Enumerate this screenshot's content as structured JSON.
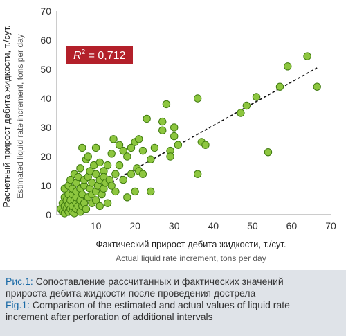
{
  "chart_data": {
    "type": "scatter",
    "xlabel_ru": "Фактический прирост дебита жидкости, т./сут.",
    "xlabel_en": "Actual liquid rate increment, tons per day",
    "ylabel_ru": "Расчетный прирост дебита жидкости, т./сут.",
    "ylabel_en": "Estimated liquid rate increment, tons per day",
    "xlim": [
      0,
      70
    ],
    "ylim": [
      0,
      70
    ],
    "xticks": [
      "10",
      "20",
      "30",
      "40",
      "50",
      "60",
      "70"
    ],
    "yticks": [
      "0",
      "10",
      "20",
      "30",
      "40",
      "50",
      "60",
      "70"
    ],
    "grid": false,
    "r2_label_prefix": "R",
    "r2_label_sup": "2",
    "r2_label_value": " = 0,712",
    "colors": {
      "point_fill": "#8dc63f",
      "point_stroke": "#3f7a0f",
      "trend": "#111111",
      "r2_box": "#b3202a"
    },
    "trendline": {
      "x": [
        1,
        66.5
      ],
      "y": [
        1.5,
        50.5
      ]
    },
    "points": [
      {
        "x": 1,
        "y": 2
      },
      {
        "x": 1.5,
        "y": 1
      },
      {
        "x": 1.5,
        "y": 4
      },
      {
        "x": 2,
        "y": 0.5
      },
      {
        "x": 2,
        "y": 3
      },
      {
        "x": 2,
        "y": 6
      },
      {
        "x": 2,
        "y": 9
      },
      {
        "x": 2.5,
        "y": 2
      },
      {
        "x": 2.5,
        "y": 5
      },
      {
        "x": 3,
        "y": 1
      },
      {
        "x": 3,
        "y": 3.5
      },
      {
        "x": 3,
        "y": 7
      },
      {
        "x": 3,
        "y": 10
      },
      {
        "x": 3.5,
        "y": 2
      },
      {
        "x": 3.5,
        "y": 5
      },
      {
        "x": 3.5,
        "y": 12
      },
      {
        "x": 4,
        "y": 1
      },
      {
        "x": 4,
        "y": 3
      },
      {
        "x": 4,
        "y": 7
      },
      {
        "x": 4,
        "y": 9
      },
      {
        "x": 4.5,
        "y": 0.5
      },
      {
        "x": 4.5,
        "y": 5
      },
      {
        "x": 4.5,
        "y": 14
      },
      {
        "x": 5,
        "y": 2
      },
      {
        "x": 5,
        "y": 4
      },
      {
        "x": 5,
        "y": 6
      },
      {
        "x": 5,
        "y": 8
      },
      {
        "x": 5,
        "y": 11
      },
      {
        "x": 5.5,
        "y": 3
      },
      {
        "x": 5.5,
        "y": 13
      },
      {
        "x": 6,
        "y": 1
      },
      {
        "x": 6,
        "y": 5
      },
      {
        "x": 6,
        "y": 9
      },
      {
        "x": 6,
        "y": 16
      },
      {
        "x": 6.5,
        "y": 3
      },
      {
        "x": 6.5,
        "y": 7
      },
      {
        "x": 6.5,
        "y": 23
      },
      {
        "x": 7,
        "y": 4
      },
      {
        "x": 7,
        "y": 10
      },
      {
        "x": 7,
        "y": 12
      },
      {
        "x": 7.5,
        "y": 19
      },
      {
        "x": 7.5,
        "y": 2
      },
      {
        "x": 8,
        "y": 6
      },
      {
        "x": 8,
        "y": 13
      },
      {
        "x": 8,
        "y": 20
      },
      {
        "x": 8.5,
        "y": 9
      },
      {
        "x": 8.5,
        "y": 15
      },
      {
        "x": 9,
        "y": 4
      },
      {
        "x": 9,
        "y": 7
      },
      {
        "x": 9,
        "y": 11
      },
      {
        "x": 9.5,
        "y": 17
      },
      {
        "x": 10,
        "y": 5
      },
      {
        "x": 10,
        "y": 8
      },
      {
        "x": 10,
        "y": 14
      },
      {
        "x": 10,
        "y": 23
      },
      {
        "x": 10.5,
        "y": 10
      },
      {
        "x": 11,
        "y": 3
      },
      {
        "x": 11,
        "y": 12
      },
      {
        "x": 11,
        "y": 18
      },
      {
        "x": 11.5,
        "y": 7
      },
      {
        "x": 12,
        "y": 9
      },
      {
        "x": 12,
        "y": 15
      },
      {
        "x": 12,
        "y": 13
      },
      {
        "x": 12.5,
        "y": 11
      },
      {
        "x": 13,
        "y": 17
      },
      {
        "x": 13,
        "y": 4
      },
      {
        "x": 13.5,
        "y": 12
      },
      {
        "x": 14,
        "y": 10
      },
      {
        "x": 14,
        "y": 21
      },
      {
        "x": 14.5,
        "y": 26
      },
      {
        "x": 15,
        "y": 14
      },
      {
        "x": 15,
        "y": 8
      },
      {
        "x": 16,
        "y": 17
      },
      {
        "x": 16,
        "y": 24
      },
      {
        "x": 17,
        "y": 12
      },
      {
        "x": 17,
        "y": 22
      },
      {
        "x": 18,
        "y": 20
      },
      {
        "x": 18,
        "y": 6
      },
      {
        "x": 19,
        "y": 14
      },
      {
        "x": 19,
        "y": 23
      },
      {
        "x": 20,
        "y": 8
      },
      {
        "x": 20,
        "y": 25
      },
      {
        "x": 20.5,
        "y": 16
      },
      {
        "x": 21,
        "y": 15
      },
      {
        "x": 21,
        "y": 26
      },
      {
        "x": 22,
        "y": 22
      },
      {
        "x": 22,
        "y": 14
      },
      {
        "x": 23,
        "y": 33
      },
      {
        "x": 24,
        "y": 19
      },
      {
        "x": 24,
        "y": 8
      },
      {
        "x": 25,
        "y": 23
      },
      {
        "x": 27,
        "y": 29
      },
      {
        "x": 27,
        "y": 32
      },
      {
        "x": 28,
        "y": 38
      },
      {
        "x": 29,
        "y": 22
      },
      {
        "x": 29,
        "y": 20
      },
      {
        "x": 30,
        "y": 30
      },
      {
        "x": 30,
        "y": 27
      },
      {
        "x": 31,
        "y": 24
      },
      {
        "x": 36,
        "y": 40
      },
      {
        "x": 36,
        "y": 14
      },
      {
        "x": 37,
        "y": 25
      },
      {
        "x": 38,
        "y": 24
      },
      {
        "x": 47,
        "y": 35
      },
      {
        "x": 48.5,
        "y": 37.5
      },
      {
        "x": 51,
        "y": 40.5
      },
      {
        "x": 54,
        "y": 21.5
      },
      {
        "x": 57,
        "y": 44
      },
      {
        "x": 59,
        "y": 51
      },
      {
        "x": 64,
        "y": 54.5
      },
      {
        "x": 66.5,
        "y": 44
      }
    ]
  },
  "caption": {
    "ru_label": "Рис.1:",
    "ru_line1": " Сопоставление рассчитанных и фактических значений",
    "ru_line2": "прироста дебита жидкости после проведения дострела",
    "en_label": "Fig.1:",
    "en_line1": " Comparison of the estimated and actual values of liquid rate",
    "en_line2": "increment after perforation of additional intervals"
  }
}
